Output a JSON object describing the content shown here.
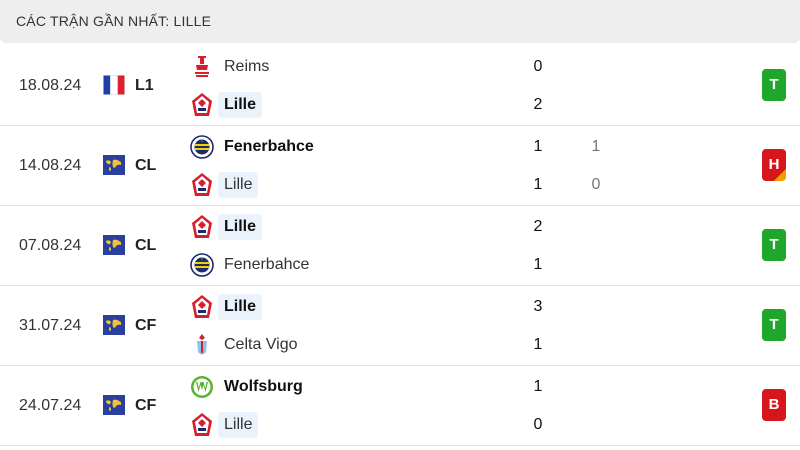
{
  "header": {
    "title": "CÁC TRẬN GẦN NHẤT: LILLE"
  },
  "colors": {
    "win": "#1fa62b",
    "loss": "#d5171d",
    "draw_accent": "#f59a00",
    "highlight": "#eaf2fb"
  },
  "matches": [
    {
      "date": "18.08.24",
      "competition": "L1",
      "competition_icon": "france-flag-icon",
      "home": {
        "name": "Reims",
        "logo": "reims-crest-icon",
        "score": "0",
        "pen": ""
      },
      "away": {
        "name": "Lille",
        "logo": "lille-crest-icon",
        "score": "2",
        "pen": ""
      },
      "result": "T"
    },
    {
      "date": "14.08.24",
      "competition": "CL",
      "competition_icon": "world-flag-icon",
      "home": {
        "name": "Fenerbahce",
        "logo": "fenerbahce-crest-icon",
        "score": "1",
        "pen": "1"
      },
      "away": {
        "name": "Lille",
        "logo": "lille-crest-icon",
        "score": "1",
        "pen": "0"
      },
      "result": "H"
    },
    {
      "date": "07.08.24",
      "competition": "CL",
      "competition_icon": "world-flag-icon",
      "home": {
        "name": "Lille",
        "logo": "lille-crest-icon",
        "score": "2",
        "pen": ""
      },
      "away": {
        "name": "Fenerbahce",
        "logo": "fenerbahce-crest-icon",
        "score": "1",
        "pen": ""
      },
      "result": "T"
    },
    {
      "date": "31.07.24",
      "competition": "CF",
      "competition_icon": "world-flag-icon",
      "home": {
        "name": "Lille",
        "logo": "lille-crest-icon",
        "score": "3",
        "pen": ""
      },
      "away": {
        "name": "Celta Vigo",
        "logo": "celta-vigo-crest-icon",
        "score": "1",
        "pen": ""
      },
      "result": "T"
    },
    {
      "date": "24.07.24",
      "competition": "CF",
      "competition_icon": "world-flag-icon",
      "home": {
        "name": "Wolfsburg",
        "logo": "wolfsburg-crest-icon",
        "score": "1",
        "pen": ""
      },
      "away": {
        "name": "Lille",
        "logo": "lille-crest-icon",
        "score": "0",
        "pen": ""
      },
      "result": "B"
    }
  ]
}
